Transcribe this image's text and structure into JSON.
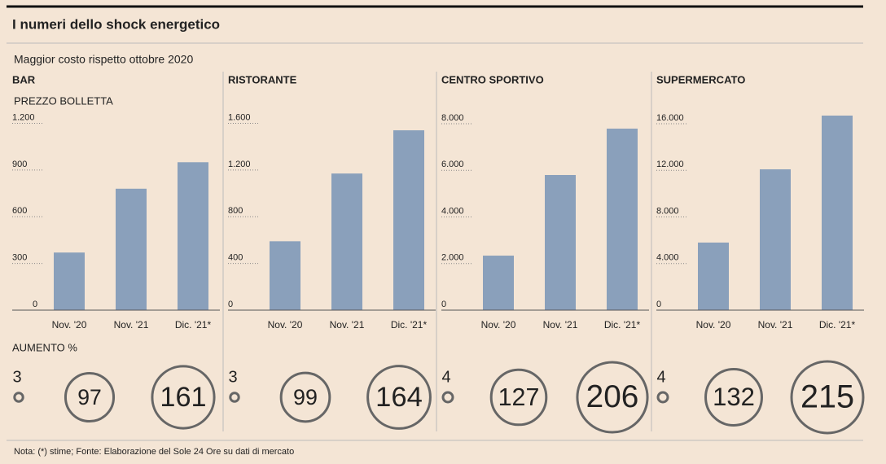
{
  "header": {
    "title": "I numeri dello shock energetico",
    "subtitle": "Maggior costo rispetto ottobre 2020"
  },
  "increase_label": "AUMENTO %",
  "note": "Nota: (*) stime; Fonte: Elaborazione del Sole 24 Ore su dati di mercato",
  "chart_data": [
    {
      "type": "bar",
      "title": "BAR",
      "ylabel": "PREZZO BOLLETTA",
      "color": "#8aa0bb",
      "categories": [
        "Nov. '20",
        "Nov. '21",
        "Dic. '21*"
      ],
      "values": [
        370,
        780,
        950
      ],
      "ylim": [
        0,
        1260
      ],
      "yticks": [
        0,
        300,
        600,
        900,
        {
          "value": 1200,
          "label": "1.200"
        }
      ],
      "increases": [
        3,
        97,
        161
      ]
    },
    {
      "type": "bar",
      "title": "RISTORANTE",
      "color": "#8aa0bb",
      "categories": [
        "Nov. '20",
        "Nov. '21",
        "Dic. '21*"
      ],
      "values": [
        590,
        1170,
        1540
      ],
      "ylim": [
        0,
        1680
      ],
      "yticks": [
        0,
        400,
        800,
        {
          "value": 1200,
          "label": "1.200"
        },
        {
          "value": 1600,
          "label": "1.600"
        }
      ],
      "increases": [
        3,
        99,
        164
      ]
    },
    {
      "type": "bar",
      "title": "CENTRO SPORTIVO",
      "color": "#8aa0bb",
      "categories": [
        "Nov. '20",
        "Nov. '21",
        "Dic. '21*"
      ],
      "values": [
        2340,
        5800,
        7790
      ],
      "ylim": [
        0,
        8420
      ],
      "yticks": [
        0,
        {
          "value": 2000,
          "label": "2.000"
        },
        {
          "value": 4000,
          "label": "4.000"
        },
        {
          "value": 6000,
          "label": "6.000"
        },
        {
          "value": 8000,
          "label": "8.000"
        }
      ],
      "increases": [
        4,
        127,
        206
      ]
    },
    {
      "type": "bar",
      "title": "SUPERMERCATO",
      "color": "#8aa0bb",
      "categories": [
        "Nov. '20",
        "Nov. '21",
        "Dic. '21*"
      ],
      "values": [
        5800,
        12090,
        16700
      ],
      "ylim": [
        0,
        16840
      ],
      "yticks": [
        0,
        {
          "value": 4000,
          "label": "4.000"
        },
        {
          "value": 8000,
          "label": "8.000"
        },
        {
          "value": 12000,
          "label": "12.000"
        },
        {
          "value": 16000,
          "label": "16.000"
        }
      ],
      "increases": [
        4,
        132,
        215
      ]
    }
  ]
}
